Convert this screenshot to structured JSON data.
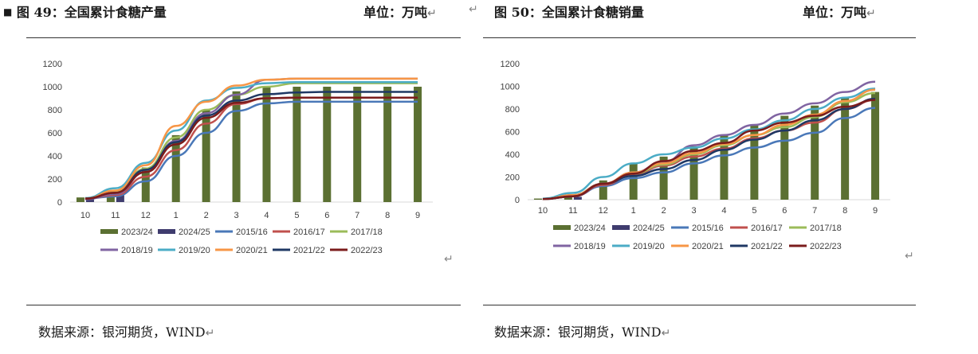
{
  "left": {
    "title": "图 49：全国累计食糖产量",
    "unit": "单位：万吨",
    "source": "数据来源：银河期货，WIND"
  },
  "right": {
    "title": "图 50：全国累计食糖销量",
    "unit": "单位：万吨",
    "source": "数据来源：银河期货，WIND"
  },
  "return_glyph": "↵",
  "colors": {
    "2023/24": "#5b7032",
    "2024/25": "#3f3c6e",
    "2015/16": "#4a78b8",
    "2016/17": "#c0504d",
    "2017/18": "#9bbb59",
    "2018/19": "#8064a2",
    "2019/20": "#4bacc6",
    "2020/21": "#f79646",
    "2021/22": "#1f3864",
    "2022/23": "#7b1c1c"
  },
  "chart_data": [
    {
      "type": "bar",
      "title": "全国累计食糖产量",
      "categories": [
        "10",
        "11",
        "12",
        "1",
        "2",
        "3",
        "4",
        "5",
        "6",
        "7",
        "8",
        "9"
      ],
      "ylim": [
        0,
        1200
      ],
      "yticks": [
        0,
        200,
        400,
        600,
        800,
        1000,
        1200
      ],
      "legend_position": "bottom",
      "bars": [
        {
          "name": "2023/24",
          "values": [
            40,
            100,
            300,
            580,
            800,
            960,
            1000,
            1000,
            1000,
            1000,
            1000,
            1000
          ]
        },
        {
          "name": "2024/25",
          "values": [
            35,
            80,
            null,
            null,
            null,
            null,
            null,
            null,
            null,
            null,
            null,
            null
          ]
        }
      ],
      "lines": [
        {
          "name": "2015/16",
          "values": [
            30,
            50,
            180,
            400,
            600,
            790,
            855,
            870,
            870,
            870,
            870,
            870
          ]
        },
        {
          "name": "2016/17",
          "values": [
            30,
            60,
            220,
            450,
            680,
            850,
            900,
            905,
            905,
            905,
            905,
            905
          ]
        },
        {
          "name": "2017/18",
          "values": [
            30,
            90,
            290,
            560,
            800,
            930,
            1000,
            1030,
            1030,
            1030,
            1030,
            1030
          ]
        },
        {
          "name": "2018/19",
          "values": [
            25,
            70,
            260,
            530,
            770,
            930,
            1060,
            1070,
            1070,
            1070,
            1070,
            1070
          ]
        },
        {
          "name": "2019/20",
          "values": [
            35,
            120,
            340,
            620,
            880,
            990,
            1030,
            1040,
            1040,
            1040,
            1040,
            1040
          ]
        },
        {
          "name": "2020/21",
          "values": [
            30,
            100,
            320,
            660,
            870,
            1010,
            1060,
            1070,
            1070,
            1070,
            1070,
            1070
          ]
        },
        {
          "name": "2021/22",
          "values": [
            30,
            80,
            280,
            520,
            750,
            880,
            935,
            950,
            955,
            955,
            955,
            955
          ]
        },
        {
          "name": "2022/23",
          "values": [
            30,
            80,
            260,
            500,
            730,
            860,
            900,
            905,
            905,
            905,
            905,
            905
          ]
        }
      ]
    },
    {
      "type": "bar",
      "title": "全国累计食糖销量",
      "categories": [
        "10",
        "11",
        "12",
        "1",
        "2",
        "3",
        "4",
        "5",
        "6",
        "7",
        "8",
        "9"
      ],
      "ylim": [
        0,
        1200
      ],
      "yticks": [
        0,
        200,
        400,
        600,
        800,
        1000,
        1200
      ],
      "legend_position": "bottom",
      "bars": [
        {
          "name": "2023/24",
          "values": [
            10,
            30,
            170,
            320,
            380,
            470,
            570,
            660,
            740,
            830,
            900,
            950
          ]
        },
        {
          "name": "2024/25",
          "values": [
            10,
            25,
            null,
            null,
            null,
            null,
            null,
            null,
            null,
            null,
            null,
            null
          ]
        }
      ],
      "lines": [
        {
          "name": "2015/16",
          "values": [
            5,
            30,
            120,
            190,
            240,
            320,
            390,
            460,
            520,
            590,
            720,
            810
          ]
        },
        {
          "name": "2016/17",
          "values": [
            5,
            30,
            130,
            220,
            300,
            380,
            450,
            540,
            610,
            680,
            800,
            880
          ]
        },
        {
          "name": "2017/18",
          "values": [
            5,
            40,
            140,
            230,
            310,
            400,
            480,
            570,
            640,
            730,
            860,
            940
          ]
        },
        {
          "name": "2018/19",
          "values": [
            5,
            40,
            140,
            240,
            330,
            480,
            570,
            660,
            760,
            850,
            950,
            1040
          ]
        },
        {
          "name": "2019/20",
          "values": [
            10,
            60,
            200,
            320,
            400,
            460,
            540,
            620,
            700,
            800,
            900,
            980
          ]
        },
        {
          "name": "2020/21",
          "values": [
            5,
            40,
            140,
            240,
            320,
            410,
            490,
            570,
            660,
            750,
            870,
            970
          ]
        },
        {
          "name": "2021/22",
          "values": [
            5,
            30,
            140,
            210,
            270,
            350,
            440,
            530,
            610,
            700,
            800,
            890
          ]
        },
        {
          "name": "2022/23",
          "values": [
            5,
            30,
            140,
            230,
            340,
            430,
            500,
            610,
            680,
            740,
            820,
            880
          ]
        }
      ]
    }
  ]
}
